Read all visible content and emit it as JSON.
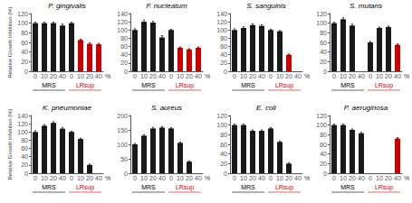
{
  "chart_data": [
    {
      "type": "bar",
      "title": "P. gingivalis",
      "categories": [
        "0",
        "10",
        "20",
        "40",
        "0",
        "10",
        "20",
        "40"
      ],
      "values": [
        100,
        100,
        100,
        95,
        100,
        65,
        57,
        56
      ],
      "errors": [
        2,
        2,
        2,
        3,
        2,
        2,
        2,
        2
      ],
      "colors": [
        "#1a1a1a",
        "#1a1a1a",
        "#1a1a1a",
        "#1a1a1a",
        "#1a1a1a",
        "#cc0000",
        "#cc0000",
        "#cc0000"
      ],
      "ylim": [
        0,
        120
      ],
      "yticks": [
        0,
        20,
        40,
        60,
        80,
        100,
        120
      ],
      "ylabel": "Relative Growth inhibition (%)",
      "grid": false,
      "annotations": [
        {
          "text": "MRS",
          "color": "#000000"
        },
        {
          "text": "LRsup",
          "color": "#cc0000"
        },
        {
          "text": "%"
        }
      ]
    },
    {
      "type": "bar",
      "title": "F. nucleatum",
      "categories": [
        "0",
        "10",
        "20",
        "40",
        "0",
        "10",
        "20",
        "40"
      ],
      "values": [
        100,
        120,
        118,
        82,
        100,
        57,
        53,
        57
      ],
      "errors": [
        3,
        4,
        3,
        4,
        2,
        2,
        2,
        2
      ],
      "colors": [
        "#1a1a1a",
        "#1a1a1a",
        "#1a1a1a",
        "#1a1a1a",
        "#1a1a1a",
        "#cc0000",
        "#cc0000",
        "#cc0000"
      ],
      "ylim": [
        0,
        140
      ],
      "yticks": [
        0,
        20,
        40,
        60,
        80,
        100,
        120,
        140
      ],
      "grid": false,
      "annotations": [
        {
          "text": "MRS",
          "color": "#000000"
        },
        {
          "text": "LRsup",
          "color": "#cc0000"
        },
        {
          "text": "%"
        }
      ]
    },
    {
      "type": "bar",
      "title": "S. sanguinis",
      "categories": [
        "0",
        "10",
        "20",
        "40",
        "0",
        "10",
        "20",
        "40"
      ],
      "values": [
        100,
        105,
        112,
        110,
        100,
        97,
        40,
        0
      ],
      "errors": [
        3,
        3,
        3,
        3,
        2,
        2,
        2,
        0
      ],
      "colors": [
        "#1a1a1a",
        "#1a1a1a",
        "#1a1a1a",
        "#1a1a1a",
        "#1a1a1a",
        "#1a1a1a",
        "#cc0000",
        "#cc0000"
      ],
      "ylim": [
        0,
        140
      ],
      "yticks": [
        0,
        20,
        40,
        60,
        80,
        100,
        120,
        140
      ],
      "grid": false,
      "annotations": [
        {
          "text": "MRS",
          "color": "#000000"
        },
        {
          "text": "LRsup",
          "color": "#cc0000"
        },
        {
          "text": "%"
        }
      ]
    },
    {
      "type": "bar",
      "title": "S. mutans",
      "categories": [
        "0",
        "10",
        "20",
        "40",
        "0",
        "10",
        "20",
        "40"
      ],
      "values": [
        100,
        108,
        95,
        0,
        60,
        90,
        92,
        55
      ],
      "errors": [
        2,
        3,
        3,
        0,
        2,
        2,
        2,
        2
      ],
      "colors": [
        "#1a1a1a",
        "#1a1a1a",
        "#1a1a1a",
        "#1a1a1a",
        "#1a1a1a",
        "#1a1a1a",
        "#1a1a1a",
        "#cc0000"
      ],
      "ylim": [
        0,
        120
      ],
      "yticks": [
        0,
        20,
        40,
        60,
        80,
        100,
        120
      ],
      "grid": false,
      "annotations": [
        {
          "text": "MRS",
          "color": "#000000"
        },
        {
          "text": "LRsup",
          "color": "#cc0000"
        },
        {
          "text": "%"
        }
      ]
    },
    {
      "type": "bar",
      "title": "K. pneumoniae",
      "categories": [
        "0",
        "10",
        "20",
        "40",
        "0",
        "10",
        "20",
        "40"
      ],
      "values": [
        100,
        115,
        122,
        108,
        100,
        83,
        20,
        0
      ],
      "errors": [
        3,
        3,
        3,
        3,
        2,
        2,
        2,
        0
      ],
      "colors": [
        "#1a1a1a",
        "#1a1a1a",
        "#1a1a1a",
        "#1a1a1a",
        "#1a1a1a",
        "#1a1a1a",
        "#1a1a1a",
        "#cc0000"
      ],
      "ylim": [
        0,
        140
      ],
      "yticks": [
        0,
        20,
        40,
        60,
        80,
        100,
        120,
        140
      ],
      "ylabel": "Relative Growth inhibition (%)",
      "grid": false,
      "annotations": [
        {
          "text": "MRS",
          "color": "#000000"
        },
        {
          "text": "LRsup",
          "color": "#cc0000"
        },
        {
          "text": "%"
        }
      ]
    },
    {
      "type": "bar",
      "title": "S. aureus",
      "categories": [
        "0",
        "10",
        "20",
        "40",
        "0",
        "10",
        "20",
        "40"
      ],
      "values": [
        100,
        130,
        155,
        158,
        155,
        105,
        40,
        0
      ],
      "errors": [
        3,
        4,
        4,
        4,
        3,
        3,
        3,
        0
      ],
      "colors": [
        "#1a1a1a",
        "#1a1a1a",
        "#1a1a1a",
        "#1a1a1a",
        "#1a1a1a",
        "#1a1a1a",
        "#1a1a1a",
        "#cc0000"
      ],
      "ylim": [
        0,
        200
      ],
      "yticks": [
        0,
        50,
        100,
        150,
        200
      ],
      "grid": false,
      "annotations": [
        {
          "text": "MRS",
          "color": "#000000"
        },
        {
          "text": "LRsup",
          "color": "#cc0000"
        },
        {
          "text": "%"
        }
      ]
    },
    {
      "type": "bar",
      "title": "E. coli",
      "categories": [
        "0",
        "10",
        "20",
        "40",
        "0",
        "10",
        "20",
        "40"
      ],
      "values": [
        100,
        100,
        88,
        88,
        93,
        65,
        20,
        0
      ],
      "errors": [
        2,
        2,
        2,
        2,
        2,
        2,
        2,
        0
      ],
      "colors": [
        "#1a1a1a",
        "#1a1a1a",
        "#1a1a1a",
        "#1a1a1a",
        "#1a1a1a",
        "#1a1a1a",
        "#1a1a1a",
        "#cc0000"
      ],
      "ylim": [
        0,
        120
      ],
      "yticks": [
        0,
        20,
        40,
        60,
        80,
        100,
        120
      ],
      "grid": false,
      "annotations": [
        {
          "text": "MRS",
          "color": "#000000"
        },
        {
          "text": "LRsup",
          "color": "#cc0000"
        },
        {
          "text": "%"
        }
      ]
    },
    {
      "type": "bar",
      "title": "P. aeruginosa",
      "categories": [
        "0",
        "10",
        "20",
        "40",
        "0",
        "10",
        "20",
        "40"
      ],
      "values": [
        100,
        100,
        90,
        83,
        0,
        0,
        0,
        72
      ],
      "errors": [
        2,
        2,
        2,
        2,
        0,
        0,
        0,
        2
      ],
      "colors": [
        "#1a1a1a",
        "#1a1a1a",
        "#1a1a1a",
        "#1a1a1a",
        "#1a1a1a",
        "#1a1a1a",
        "#1a1a1a",
        "#cc0000"
      ],
      "ylim": [
        0,
        120
      ],
      "yticks": [
        0,
        20,
        40,
        60,
        80,
        100,
        120
      ],
      "grid": false,
      "annotations": [
        {
          "text": "MRS",
          "color": "#000000"
        },
        {
          "text": "LRsup",
          "color": "#cc0000"
        },
        {
          "text": "%"
        }
      ]
    }
  ]
}
